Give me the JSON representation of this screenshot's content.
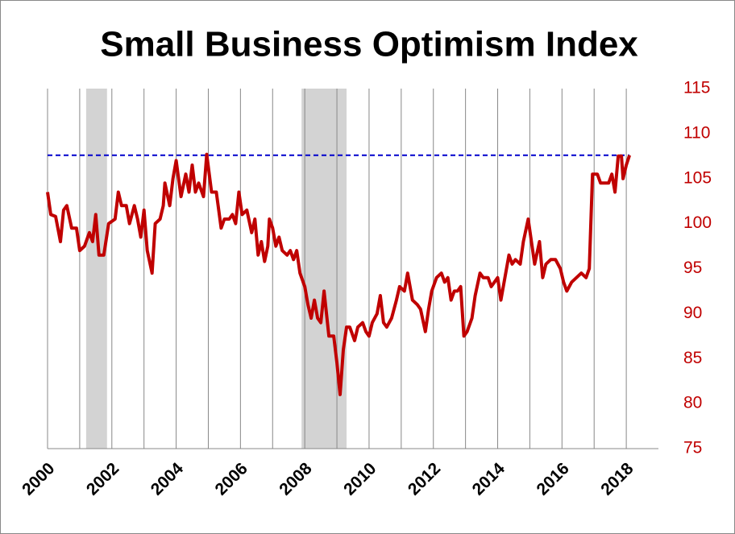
{
  "chart_data": {
    "type": "line",
    "title": "Small Business Optimism Index",
    "x": [
      2000.0,
      2000.1,
      2000.25,
      2000.4,
      2000.5,
      2000.6,
      2000.75,
      2000.9,
      2001.0,
      2001.15,
      2001.3,
      2001.4,
      2001.5,
      2001.6,
      2001.75,
      2001.9,
      2002.1,
      2002.2,
      2002.3,
      2002.45,
      2002.55,
      2002.7,
      2002.8,
      2002.9,
      2003.0,
      2003.1,
      2003.25,
      2003.35,
      2003.5,
      2003.6,
      2003.65,
      2003.8,
      2003.9,
      2004.0,
      2004.15,
      2004.3,
      2004.4,
      2004.5,
      2004.6,
      2004.7,
      2004.85,
      2004.95,
      2005.1,
      2005.25,
      2005.4,
      2005.5,
      2005.65,
      2005.75,
      2005.85,
      2005.95,
      2006.05,
      2006.2,
      2006.35,
      2006.45,
      2006.55,
      2006.65,
      2006.75,
      2006.85,
      2006.9,
      2007.0,
      2007.1,
      2007.2,
      2007.3,
      2007.45,
      2007.55,
      2007.65,
      2007.75,
      2007.85,
      2008.0,
      2008.1,
      2008.2,
      2008.3,
      2008.4,
      2008.5,
      2008.6,
      2008.75,
      2008.9,
      2009.0,
      2009.1,
      2009.2,
      2009.3,
      2009.4,
      2009.55,
      2009.65,
      2009.8,
      2009.9,
      2010.0,
      2010.1,
      2010.25,
      2010.35,
      2010.45,
      2010.55,
      2010.7,
      2010.85,
      2010.95,
      2011.1,
      2011.2,
      2011.35,
      2011.5,
      2011.6,
      2011.75,
      2011.85,
      2011.95,
      2012.1,
      2012.25,
      2012.35,
      2012.45,
      2012.55,
      2012.65,
      2012.75,
      2012.85,
      2012.95,
      2013.05,
      2013.2,
      2013.3,
      2013.45,
      2013.55,
      2013.7,
      2013.8,
      2013.9,
      2014.0,
      2014.1,
      2014.25,
      2014.35,
      2014.45,
      2014.55,
      2014.7,
      2014.8,
      2014.95,
      2015.05,
      2015.15,
      2015.3,
      2015.4,
      2015.5,
      2015.65,
      2015.8,
      2015.95,
      2016.05,
      2016.15,
      2016.3,
      2016.45,
      2016.6,
      2016.75,
      2016.85,
      2016.95,
      2017.1,
      2017.2,
      2017.35,
      2017.45,
      2017.55,
      2017.65,
      2017.75,
      2017.85,
      2017.9,
      2018.0,
      2018.1
    ],
    "series": [
      {
        "color": "#c00000",
        "values": [
          103.5,
          101,
          100.8,
          98,
          101.5,
          102,
          99.5,
          99.5,
          97,
          97.5,
          99,
          98,
          101,
          96.5,
          96.5,
          100,
          100.5,
          103.5,
          102,
          102,
          100,
          102,
          100.5,
          98.5,
          101.5,
          97,
          94.5,
          100,
          100.5,
          102,
          104.5,
          102,
          105,
          107,
          103,
          105.5,
          103.5,
          106.5,
          103.5,
          104.5,
          103,
          107.7,
          103.5,
          103.5,
          99.5,
          100.5,
          100.5,
          101,
          100,
          103.5,
          101,
          101.5,
          99,
          100.5,
          96.5,
          98,
          95.8,
          97.5,
          100.5,
          99.5,
          97.5,
          98.5,
          97,
          96.5,
          97,
          96,
          97,
          94.5,
          93,
          91,
          89.5,
          91.5,
          89.5,
          89,
          92.5,
          87.5,
          87.5,
          84.5,
          81,
          86,
          88.5,
          88.5,
          87,
          88.5,
          89,
          88,
          87.5,
          89,
          90,
          92,
          89,
          88.5,
          89.5,
          91.5,
          93,
          92.5,
          94.5,
          91.5,
          91,
          90.5,
          88,
          90.5,
          92.5,
          94,
          94.5,
          93.5,
          94,
          91.5,
          92.5,
          92.5,
          93,
          87.5,
          88,
          89.5,
          92,
          94.5,
          94,
          94,
          93,
          93.5,
          94,
          91.5,
          94.5,
          96.5,
          95.5,
          96,
          95.5,
          98,
          100.5,
          98,
          95.5,
          98,
          94,
          95.5,
          96,
          96,
          95,
          93.5,
          92.5,
          93.5,
          94,
          94.5,
          94,
          95,
          105.5,
          105.5,
          104.5,
          104.5,
          104.5,
          105.5,
          103.5,
          107.5,
          107.5,
          105,
          106.5,
          107.6
        ]
      }
    ],
    "reference_line": {
      "value": 107.6,
      "color": "#0000cc"
    },
    "shaded_periods": [
      [
        2001.2,
        2001.85
      ],
      [
        2007.9,
        2009.3
      ]
    ],
    "xlim": [
      2000,
      2019
    ],
    "xticks": [
      2000,
      2002,
      2004,
      2006,
      2008,
      2010,
      2012,
      2014,
      2016,
      2018
    ],
    "ylim": [
      75,
      115
    ],
    "yticks": [
      75,
      80,
      85,
      90,
      95,
      100,
      105,
      110,
      115
    ],
    "grid": true
  }
}
